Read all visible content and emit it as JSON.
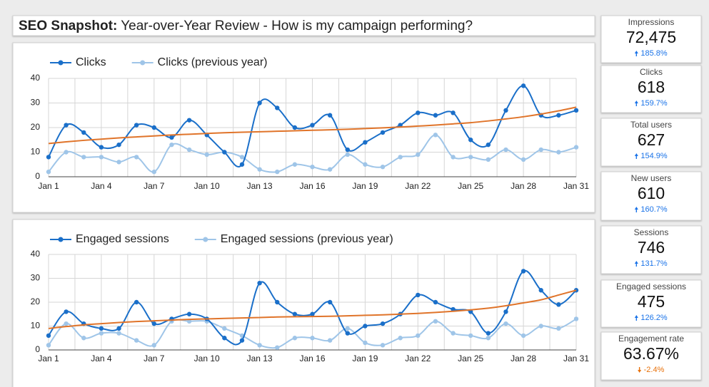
{
  "header": {
    "title_bold": "SEO Snapshot:",
    "title": "Year-over-Year Review - How is my campaign performing?"
  },
  "chart_data": [
    {
      "type": "line",
      "categories": [
        "Jan 1",
        null,
        null,
        "Jan 4",
        null,
        null,
        "Jan 7",
        null,
        null,
        "Jan 10",
        null,
        null,
        "Jan 13",
        null,
        null,
        "Jan 16",
        null,
        null,
        "Jan 19",
        null,
        null,
        "Jan 22",
        null,
        null,
        "Jan 25",
        null,
        null,
        "Jan 28",
        null,
        null,
        "Jan 31"
      ],
      "series": [
        {
          "name": "Clicks",
          "color": "#1a6fc9",
          "values": [
            8,
            21,
            18,
            12,
            13,
            21,
            20,
            16,
            23,
            17,
            10,
            5,
            30,
            28,
            20,
            21,
            25,
            11,
            14,
            18,
            21,
            26,
            25,
            26,
            15,
            13,
            27,
            37,
            25,
            25,
            27
          ]
        },
        {
          "name": "Clicks (previous year)",
          "color": "#9fc5e8",
          "values": [
            2,
            10,
            8,
            8,
            6,
            8,
            2,
            13,
            11,
            9,
            10,
            8,
            3,
            2,
            5,
            4,
            3,
            9,
            5,
            4,
            8,
            9,
            17,
            8,
            8,
            7,
            11,
            7,
            11,
            10,
            12
          ]
        }
      ],
      "trendline": {
        "color": "#e0742a",
        "values": [
          13.5,
          14.2,
          14.8,
          15.3,
          15.8,
          16.2,
          16.6,
          17,
          17.3,
          17.6,
          17.9,
          18.1,
          18.3,
          18.5,
          18.7,
          18.9,
          19.1,
          19.3,
          19.6,
          19.9,
          20.2,
          20.6,
          21,
          21.5,
          22,
          22.7,
          23.5,
          24.4,
          25.5,
          26.8,
          28.3
        ]
      },
      "ylim": [
        0,
        40
      ],
      "yticks": [
        0,
        10,
        20,
        30,
        40
      ],
      "grid": true,
      "legend": "top"
    },
    {
      "type": "line",
      "categories": [
        "Jan 1",
        null,
        null,
        "Jan 4",
        null,
        null,
        "Jan 7",
        null,
        null,
        "Jan 10",
        null,
        null,
        "Jan 13",
        null,
        null,
        "Jan 16",
        null,
        null,
        "Jan 19",
        null,
        null,
        "Jan 22",
        null,
        null,
        "Jan 25",
        null,
        null,
        "Jan 28",
        null,
        null,
        "Jan 31"
      ],
      "series": [
        {
          "name": "Engaged sessions",
          "color": "#1a6fc9",
          "values": [
            6,
            16,
            11,
            9,
            9,
            20,
            11,
            13,
            15,
            13,
            5,
            4,
            28,
            20,
            15,
            15,
            20,
            7,
            10,
            11,
            15,
            23,
            20,
            17,
            16,
            7,
            16,
            33,
            25,
            19,
            25
          ]
        },
        {
          "name": "Engaged sessions (previous year)",
          "color": "#9fc5e8",
          "values": [
            2,
            11,
            5,
            7,
            7,
            4,
            2,
            12,
            12,
            12,
            9,
            6,
            2,
            1,
            5,
            5,
            4,
            9,
            3,
            2,
            5,
            6,
            12,
            7,
            6,
            5,
            11,
            6,
            10,
            9,
            13
          ]
        }
      ],
      "trendline": {
        "color": "#e0742a",
        "values": [
          9,
          9.8,
          10.5,
          11,
          11.5,
          11.9,
          12.2,
          12.5,
          12.8,
          13,
          13.2,
          13.4,
          13.6,
          13.8,
          13.9,
          14,
          14.1,
          14.3,
          14.5,
          14.7,
          15,
          15.3,
          15.7,
          16.2,
          16.8,
          17.5,
          18.5,
          19.7,
          21,
          23,
          25
        ]
      },
      "ylim": [
        0,
        40
      ],
      "yticks": [
        0,
        10,
        20,
        30,
        40
      ],
      "grid": true,
      "legend": "top"
    }
  ],
  "scorecards": [
    {
      "label": "Impressions",
      "value": "72,475",
      "change": "185.8%"
    },
    {
      "label": "Clicks",
      "value": "618",
      "change": "159.7%"
    },
    {
      "label": "Total users",
      "value": "627",
      "change": "154.9%"
    },
    {
      "label": "New users",
      "value": "610",
      "change": "160.7%"
    },
    {
      "label": "Sessions",
      "value": "746",
      "change": "131.7%"
    },
    {
      "label": "Engaged sessions",
      "value": "475",
      "change": "126.2%"
    },
    {
      "label": "Engagement rate",
      "value": "63.67%",
      "change": "-2.4%"
    }
  ]
}
